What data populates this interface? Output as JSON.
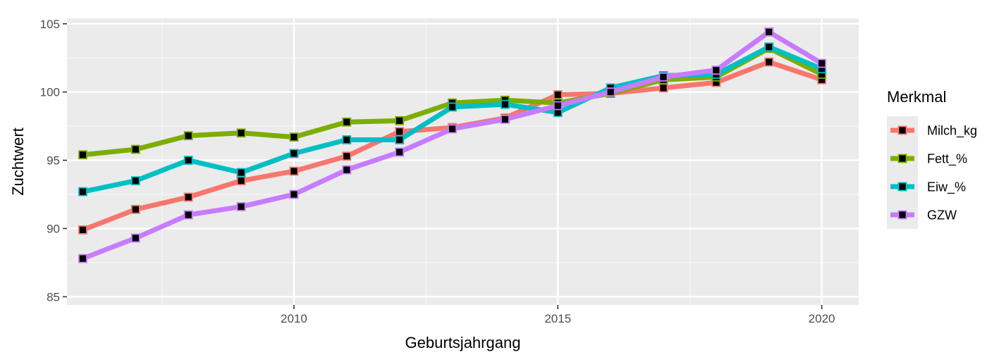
{
  "chart_data": {
    "type": "line",
    "title": "",
    "xlabel": "Geburtsjahrgang",
    "ylabel": "Zuchtwert",
    "xlim": [
      2005.7,
      2020.7
    ],
    "ylim": [
      84.4,
      105.4
    ],
    "x_ticks": [
      2010,
      2015,
      2020
    ],
    "x_tick_labels": [
      "2010",
      "2015",
      "2020"
    ],
    "y_ticks": [
      85,
      90,
      95,
      100,
      105
    ],
    "y_tick_labels": [
      "85",
      "90",
      "95",
      "100",
      "105"
    ],
    "grid": true,
    "legend": {
      "title": "Merkmal",
      "position": "right"
    },
    "x": [
      2006,
      2007,
      2008,
      2009,
      2010,
      2011,
      2012,
      2013,
      2014,
      2015,
      2016,
      2017,
      2018,
      2019,
      2020
    ],
    "series": [
      {
        "name": "Milch_kg",
        "color": "#F8766D",
        "values": [
          89.9,
          91.4,
          92.3,
          93.5,
          94.2,
          95.3,
          97.1,
          97.4,
          98.1,
          99.8,
          99.9,
          100.3,
          100.7,
          102.2,
          100.9
        ]
      },
      {
        "name": "Fett_%",
        "color": "#7CAE00",
        "values": [
          95.4,
          95.8,
          96.8,
          97.0,
          96.7,
          97.8,
          97.9,
          99.2,
          99.4,
          99.2,
          99.9,
          100.9,
          101.1,
          103.2,
          101.3
        ]
      },
      {
        "name": "Eiw_%",
        "color": "#00BFC4",
        "values": [
          92.7,
          93.5,
          95.0,
          94.1,
          95.5,
          96.5,
          96.5,
          98.9,
          99.1,
          98.5,
          100.3,
          101.2,
          101.3,
          103.3,
          101.7
        ]
      },
      {
        "name": "GZW",
        "color": "#C77CFF",
        "values": [
          87.8,
          89.3,
          91.0,
          91.6,
          92.5,
          94.3,
          95.6,
          97.3,
          98.0,
          99.0,
          100.0,
          101.1,
          101.6,
          104.4,
          102.1
        ]
      }
    ]
  }
}
